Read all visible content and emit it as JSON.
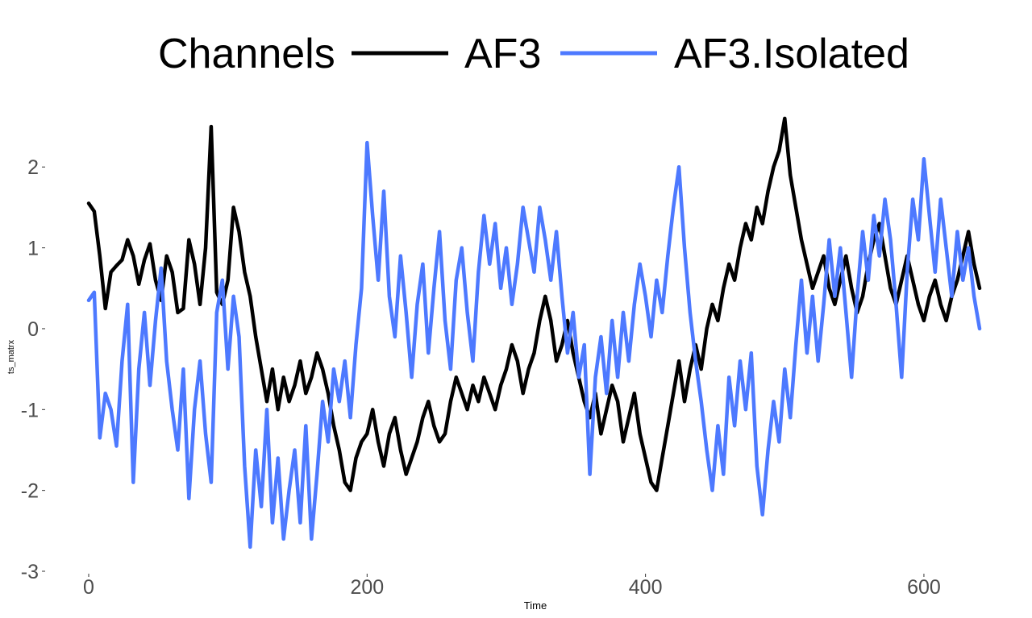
{
  "chart_data": {
    "type": "line",
    "title": "",
    "xlabel": "Time",
    "ylabel": "ts_matrx",
    "xlim": [
      0,
      640
    ],
    "ylim": [
      -3,
      2.7
    ],
    "x_ticks": [
      0,
      200,
      400,
      600
    ],
    "x_tick_labels": [
      "0",
      "200",
      "400",
      "600"
    ],
    "y_ticks": [
      -3,
      -2,
      -1,
      0,
      1,
      2
    ],
    "y_tick_labels": [
      "-3",
      "-2",
      "-1",
      "0",
      "1",
      "2"
    ],
    "grid": false,
    "legend": {
      "title": "Channels",
      "position": "top"
    },
    "series": [
      {
        "name": "AF3",
        "color": "#000000",
        "points": [
          [
            0,
            1.55
          ],
          [
            4,
            1.45
          ],
          [
            8,
            0.9
          ],
          [
            12,
            0.25
          ],
          [
            16,
            0.7
          ],
          [
            20,
            0.78
          ],
          [
            24,
            0.85
          ],
          [
            28,
            1.1
          ],
          [
            32,
            0.9
          ],
          [
            36,
            0.55
          ],
          [
            40,
            0.85
          ],
          [
            44,
            1.05
          ],
          [
            48,
            0.6
          ],
          [
            52,
            0.35
          ],
          [
            56,
            0.9
          ],
          [
            60,
            0.7
          ],
          [
            64,
            0.2
          ],
          [
            68,
            0.25
          ],
          [
            72,
            1.1
          ],
          [
            76,
            0.8
          ],
          [
            80,
            0.3
          ],
          [
            84,
            1.0
          ],
          [
            88,
            2.5
          ],
          [
            92,
            0.45
          ],
          [
            96,
            0.3
          ],
          [
            100,
            0.6
          ],
          [
            104,
            1.5
          ],
          [
            108,
            1.2
          ],
          [
            112,
            0.7
          ],
          [
            116,
            0.4
          ],
          [
            120,
            -0.1
          ],
          [
            124,
            -0.5
          ],
          [
            128,
            -0.9
          ],
          [
            132,
            -0.5
          ],
          [
            136,
            -1.0
          ],
          [
            140,
            -0.6
          ],
          [
            144,
            -0.9
          ],
          [
            148,
            -0.7
          ],
          [
            152,
            -0.4
          ],
          [
            156,
            -0.8
          ],
          [
            160,
            -0.6
          ],
          [
            164,
            -0.3
          ],
          [
            168,
            -0.5
          ],
          [
            172,
            -0.8
          ],
          [
            176,
            -1.2
          ],
          [
            180,
            -1.5
          ],
          [
            184,
            -1.9
          ],
          [
            188,
            -2.0
          ],
          [
            192,
            -1.6
          ],
          [
            196,
            -1.4
          ],
          [
            200,
            -1.3
          ],
          [
            204,
            -1.0
          ],
          [
            208,
            -1.4
          ],
          [
            212,
            -1.7
          ],
          [
            216,
            -1.3
          ],
          [
            220,
            -1.1
          ],
          [
            224,
            -1.5
          ],
          [
            228,
            -1.8
          ],
          [
            232,
            -1.6
          ],
          [
            236,
            -1.4
          ],
          [
            240,
            -1.1
          ],
          [
            244,
            -0.9
          ],
          [
            248,
            -1.2
          ],
          [
            252,
            -1.4
          ],
          [
            256,
            -1.3
          ],
          [
            260,
            -0.9
          ],
          [
            264,
            -0.6
          ],
          [
            268,
            -0.8
          ],
          [
            272,
            -1.0
          ],
          [
            276,
            -0.7
          ],
          [
            280,
            -0.9
          ],
          [
            284,
            -0.6
          ],
          [
            288,
            -0.8
          ],
          [
            292,
            -1.0
          ],
          [
            296,
            -0.7
          ],
          [
            300,
            -0.5
          ],
          [
            304,
            -0.2
          ],
          [
            308,
            -0.4
          ],
          [
            312,
            -0.8
          ],
          [
            316,
            -0.5
          ],
          [
            320,
            -0.3
          ],
          [
            324,
            0.1
          ],
          [
            328,
            0.4
          ],
          [
            332,
            0.1
          ],
          [
            336,
            -0.4
          ],
          [
            340,
            -0.2
          ],
          [
            344,
            0.1
          ],
          [
            348,
            -0.3
          ],
          [
            352,
            -0.6
          ],
          [
            356,
            -0.9
          ],
          [
            360,
            -1.1
          ],
          [
            364,
            -0.8
          ],
          [
            368,
            -1.3
          ],
          [
            372,
            -1.0
          ],
          [
            376,
            -0.7
          ],
          [
            380,
            -0.9
          ],
          [
            384,
            -1.4
          ],
          [
            388,
            -1.1
          ],
          [
            392,
            -0.8
          ],
          [
            396,
            -1.3
          ],
          [
            400,
            -1.6
          ],
          [
            404,
            -1.9
          ],
          [
            408,
            -2.0
          ],
          [
            412,
            -1.6
          ],
          [
            416,
            -1.2
          ],
          [
            420,
            -0.8
          ],
          [
            424,
            -0.4
          ],
          [
            428,
            -0.9
          ],
          [
            432,
            -0.5
          ],
          [
            436,
            -0.2
          ],
          [
            440,
            -0.5
          ],
          [
            444,
            0.0
          ],
          [
            448,
            0.3
          ],
          [
            452,
            0.1
          ],
          [
            456,
            0.5
          ],
          [
            460,
            0.8
          ],
          [
            464,
            0.6
          ],
          [
            468,
            1.0
          ],
          [
            472,
            1.3
          ],
          [
            476,
            1.1
          ],
          [
            480,
            1.5
          ],
          [
            484,
            1.3
          ],
          [
            488,
            1.7
          ],
          [
            492,
            2.0
          ],
          [
            496,
            2.2
          ],
          [
            500,
            2.6
          ],
          [
            504,
            1.9
          ],
          [
            508,
            1.5
          ],
          [
            512,
            1.1
          ],
          [
            516,
            0.8
          ],
          [
            520,
            0.5
          ],
          [
            524,
            0.7
          ],
          [
            528,
            0.9
          ],
          [
            532,
            0.5
          ],
          [
            536,
            0.3
          ],
          [
            540,
            0.6
          ],
          [
            544,
            0.9
          ],
          [
            548,
            0.5
          ],
          [
            552,
            0.2
          ],
          [
            556,
            0.4
          ],
          [
            560,
            0.8
          ],
          [
            564,
            1.1
          ],
          [
            568,
            1.3
          ],
          [
            572,
            0.9
          ],
          [
            576,
            0.5
          ],
          [
            580,
            0.3
          ],
          [
            584,
            0.6
          ],
          [
            588,
            0.9
          ],
          [
            592,
            0.6
          ],
          [
            596,
            0.3
          ],
          [
            600,
            0.1
          ],
          [
            604,
            0.4
          ],
          [
            608,
            0.6
          ],
          [
            612,
            0.3
          ],
          [
            616,
            0.1
          ],
          [
            620,
            0.4
          ],
          [
            624,
            0.6
          ],
          [
            628,
            0.9
          ],
          [
            632,
            1.2
          ],
          [
            636,
            0.8
          ],
          [
            640,
            0.5
          ]
        ]
      },
      {
        "name": "AF3.Isolated",
        "color": "#4d79ff",
        "points": [
          [
            0,
            0.35
          ],
          [
            4,
            0.45
          ],
          [
            8,
            -1.35
          ],
          [
            12,
            -0.8
          ],
          [
            16,
            -1.0
          ],
          [
            20,
            -1.45
          ],
          [
            24,
            -0.4
          ],
          [
            28,
            0.3
          ],
          [
            32,
            -1.9
          ],
          [
            36,
            -0.5
          ],
          [
            40,
            0.2
          ],
          [
            44,
            -0.7
          ],
          [
            48,
            0.1
          ],
          [
            52,
            0.75
          ],
          [
            56,
            -0.4
          ],
          [
            60,
            -1.0
          ],
          [
            64,
            -1.5
          ],
          [
            68,
            -0.5
          ],
          [
            72,
            -2.1
          ],
          [
            76,
            -1.0
          ],
          [
            80,
            -0.4
          ],
          [
            84,
            -1.3
          ],
          [
            88,
            -1.9
          ],
          [
            92,
            0.2
          ],
          [
            96,
            0.6
          ],
          [
            100,
            -0.5
          ],
          [
            104,
            0.4
          ],
          [
            108,
            -0.1
          ],
          [
            112,
            -1.7
          ],
          [
            116,
            -2.7
          ],
          [
            120,
            -1.5
          ],
          [
            124,
            -2.2
          ],
          [
            128,
            -1.0
          ],
          [
            132,
            -2.4
          ],
          [
            136,
            -1.6
          ],
          [
            140,
            -2.6
          ],
          [
            144,
            -2.0
          ],
          [
            148,
            -1.5
          ],
          [
            152,
            -2.4
          ],
          [
            156,
            -1.2
          ],
          [
            160,
            -2.6
          ],
          [
            164,
            -1.8
          ],
          [
            168,
            -0.9
          ],
          [
            172,
            -1.4
          ],
          [
            176,
            -0.5
          ],
          [
            180,
            -0.9
          ],
          [
            184,
            -0.4
          ],
          [
            188,
            -1.1
          ],
          [
            192,
            -0.2
          ],
          [
            196,
            0.5
          ],
          [
            200,
            2.3
          ],
          [
            204,
            1.4
          ],
          [
            208,
            0.6
          ],
          [
            212,
            1.7
          ],
          [
            216,
            0.4
          ],
          [
            220,
            -0.1
          ],
          [
            224,
            0.9
          ],
          [
            228,
            0.2
          ],
          [
            232,
            -0.6
          ],
          [
            236,
            0.3
          ],
          [
            240,
            0.8
          ],
          [
            244,
            -0.3
          ],
          [
            248,
            0.5
          ],
          [
            252,
            1.2
          ],
          [
            256,
            0.1
          ],
          [
            260,
            -0.5
          ],
          [
            264,
            0.6
          ],
          [
            268,
            1.0
          ],
          [
            272,
            0.2
          ],
          [
            276,
            -0.4
          ],
          [
            280,
            0.7
          ],
          [
            284,
            1.4
          ],
          [
            288,
            0.8
          ],
          [
            292,
            1.3
          ],
          [
            296,
            0.5
          ],
          [
            300,
            1.0
          ],
          [
            304,
            0.3
          ],
          [
            308,
            0.8
          ],
          [
            312,
            1.5
          ],
          [
            316,
            1.1
          ],
          [
            320,
            0.7
          ],
          [
            324,
            1.5
          ],
          [
            328,
            1.1
          ],
          [
            332,
            0.6
          ],
          [
            336,
            1.2
          ],
          [
            340,
            0.4
          ],
          [
            344,
            -0.3
          ],
          [
            348,
            0.2
          ],
          [
            352,
            -0.6
          ],
          [
            356,
            -0.2
          ],
          [
            360,
            -1.8
          ],
          [
            364,
            -0.6
          ],
          [
            368,
            -0.1
          ],
          [
            372,
            -0.8
          ],
          [
            376,
            0.1
          ],
          [
            380,
            -0.6
          ],
          [
            384,
            0.2
          ],
          [
            388,
            -0.4
          ],
          [
            392,
            0.3
          ],
          [
            396,
            0.8
          ],
          [
            400,
            0.4
          ],
          [
            404,
            -0.1
          ],
          [
            408,
            0.6
          ],
          [
            412,
            0.2
          ],
          [
            416,
            0.9
          ],
          [
            420,
            1.5
          ],
          [
            424,
            2.0
          ],
          [
            428,
            1.0
          ],
          [
            432,
            0.2
          ],
          [
            436,
            -0.4
          ],
          [
            440,
            -0.9
          ],
          [
            444,
            -1.5
          ],
          [
            448,
            -2.0
          ],
          [
            452,
            -1.2
          ],
          [
            456,
            -1.8
          ],
          [
            460,
            -0.6
          ],
          [
            464,
            -1.2
          ],
          [
            468,
            -0.4
          ],
          [
            472,
            -1.0
          ],
          [
            476,
            -0.3
          ],
          [
            480,
            -1.7
          ],
          [
            484,
            -2.3
          ],
          [
            488,
            -1.5
          ],
          [
            492,
            -0.9
          ],
          [
            496,
            -1.4
          ],
          [
            500,
            -0.5
          ],
          [
            504,
            -1.1
          ],
          [
            508,
            -0.2
          ],
          [
            512,
            0.6
          ],
          [
            516,
            -0.3
          ],
          [
            520,
            0.4
          ],
          [
            524,
            -0.4
          ],
          [
            528,
            0.3
          ],
          [
            532,
            1.1
          ],
          [
            536,
            0.4
          ],
          [
            540,
            1.0
          ],
          [
            544,
            0.2
          ],
          [
            548,
            -0.6
          ],
          [
            552,
            0.4
          ],
          [
            556,
            1.2
          ],
          [
            560,
            0.6
          ],
          [
            564,
            1.4
          ],
          [
            568,
            0.9
          ],
          [
            572,
            1.6
          ],
          [
            576,
            1.1
          ],
          [
            580,
            0.3
          ],
          [
            584,
            -0.6
          ],
          [
            588,
            0.7
          ],
          [
            592,
            1.6
          ],
          [
            596,
            1.1
          ],
          [
            600,
            2.1
          ],
          [
            604,
            1.4
          ],
          [
            608,
            0.7
          ],
          [
            612,
            1.6
          ],
          [
            616,
            1.0
          ],
          [
            620,
            0.4
          ],
          [
            624,
            1.2
          ],
          [
            628,
            0.6
          ],
          [
            632,
            1.0
          ],
          [
            636,
            0.4
          ],
          [
            640,
            0.0
          ]
        ]
      }
    ]
  }
}
